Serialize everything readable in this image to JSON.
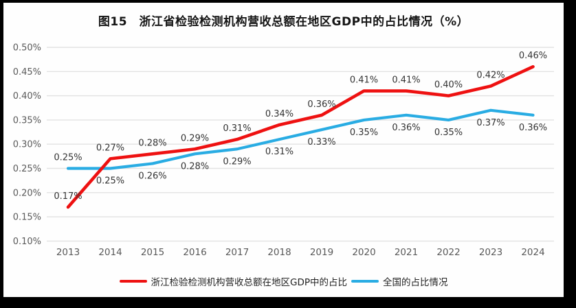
{
  "title": "图15　浙江省检验检测机构营收总额在地区GDP中的占比情况（%）",
  "colors": {
    "zhejiang_line": "#ee1111",
    "national_line": "#29ace3",
    "gridline": "#e2e2e2",
    "axis_text": "#595959",
    "data_label_text": "#333333",
    "frame_border": "#000000",
    "background": "#fefefe"
  },
  "chart_data": {
    "type": "line",
    "x": [
      "2013",
      "2014",
      "2015",
      "2016",
      "2017",
      "2018",
      "2019",
      "2020",
      "2021",
      "2022",
      "2023",
      "2024"
    ],
    "series": [
      {
        "name": "浙江检验检测机构营收总额在地区GDP中的占比",
        "color": "#ee1111",
        "values": [
          0.17,
          0.27,
          0.28,
          0.29,
          0.31,
          0.34,
          0.36,
          0.41,
          0.41,
          0.4,
          0.42,
          0.46
        ],
        "labels": [
          "0.17%",
          "0.27%",
          "0.28%",
          "0.29%",
          "0.31%",
          "0.34%",
          "0.36%",
          "0.41%",
          "0.41%",
          "0.40%",
          "0.42%",
          "0.46%"
        ],
        "label_positions": [
          "above",
          "above",
          "above",
          "above",
          "above",
          "above",
          "above",
          "above",
          "above",
          "above",
          "above",
          "above"
        ]
      },
      {
        "name": "全国的占比情况",
        "color": "#29ace3",
        "values": [
          0.25,
          0.25,
          0.26,
          0.28,
          0.29,
          0.31,
          0.33,
          0.35,
          0.36,
          0.35,
          0.37,
          0.36
        ],
        "labels": [
          "0.25%",
          "0.25%",
          "0.26%",
          "0.28%",
          "0.29%",
          "0.31%",
          "0.33%",
          "0.35%",
          "0.36%",
          "0.35%",
          "0.37%",
          "0.36%"
        ],
        "label_positions": [
          "above",
          "below",
          "below",
          "below",
          "below",
          "below",
          "below",
          "below",
          "below",
          "below",
          "below",
          "below"
        ]
      }
    ],
    "ylim": [
      0.1,
      0.5
    ],
    "ytick_step": 0.05,
    "ytick_labels": [
      "0.50%",
      "0.45%",
      "0.40%",
      "0.35%",
      "0.30%",
      "0.25%",
      "0.20%",
      "0.15%",
      "0.10%"
    ],
    "grid": "horizontal",
    "legend_position": "bottom",
    "xlabel": "",
    "ylabel": ""
  }
}
